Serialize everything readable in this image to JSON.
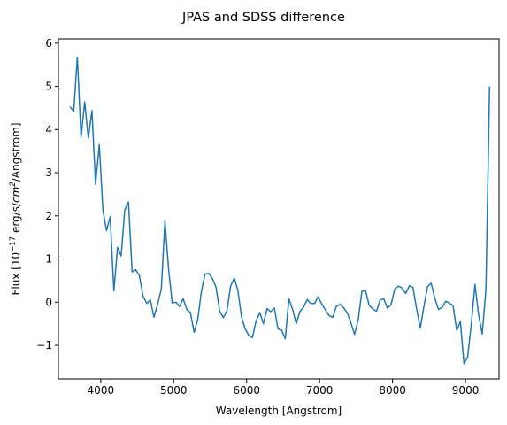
{
  "chart_data": {
    "type": "line",
    "title": "JPAS and SDSS difference",
    "xlabel": "Wavelength [Angstrom]",
    "ylabel_parts": {
      "prefix": "Flux [10",
      "exp1": "−17",
      "mid": " erg/s/",
      "cm": "cm",
      "exp2": "2",
      "suffix": "/Angstrom]"
    },
    "xlim": [
      3420,
      9460
    ],
    "ylim": [
      -1.78,
      6.1
    ],
    "xticks": [
      4000,
      5000,
      6000,
      7000,
      8000,
      9000
    ],
    "yticks": [
      -1,
      0,
      1,
      2,
      3,
      4,
      5,
      6
    ],
    "grid": false,
    "legend": "none",
    "series": [
      {
        "color": "#1f77b4",
        "x": [
          3580,
          3630,
          3680,
          3730,
          3780,
          3830,
          3880,
          3930,
          3980,
          4030,
          4080,
          4130,
          4180,
          4230,
          4280,
          4330,
          4380,
          4430,
          4480,
          4530,
          4580,
          4630,
          4680,
          4730,
          4780,
          4830,
          4880,
          4930,
          4980,
          5030,
          5080,
          5130,
          5180,
          5230,
          5280,
          5330,
          5380,
          5430,
          5480,
          5530,
          5580,
          5630,
          5680,
          5730,
          5780,
          5830,
          5880,
          5930,
          5980,
          6030,
          6080,
          6130,
          6180,
          6230,
          6280,
          6330,
          6380,
          6430,
          6480,
          6530,
          6580,
          6630,
          6680,
          6730,
          6780,
          6830,
          6880,
          6930,
          6980,
          7030,
          7080,
          7130,
          7180,
          7230,
          7280,
          7330,
          7380,
          7430,
          7480,
          7530,
          7580,
          7630,
          7680,
          7730,
          7780,
          7830,
          7880,
          7930,
          7980,
          8030,
          8080,
          8130,
          8180,
          8230,
          8280,
          8330,
          8380,
          8430,
          8480,
          8530,
          8580,
          8630,
          8680,
          8730,
          8780,
          8830,
          8880,
          8930,
          8980,
          9030,
          9080,
          9130,
          9180,
          9230,
          9280,
          9330
        ],
        "y": [
          4.53,
          4.42,
          5.68,
          3.82,
          4.64,
          3.8,
          4.44,
          2.73,
          3.65,
          2.13,
          1.66,
          1.98,
          0.26,
          1.27,
          1.07,
          2.14,
          2.32,
          0.7,
          0.75,
          0.62,
          0.14,
          -0.03,
          0.05,
          -0.35,
          -0.05,
          0.3,
          1.88,
          0.77,
          -0.02,
          0.0,
          -0.1,
          0.08,
          -0.17,
          -0.24,
          -0.7,
          -0.4,
          0.25,
          0.65,
          0.67,
          0.55,
          0.35,
          -0.2,
          -0.36,
          -0.2,
          0.37,
          0.56,
          0.28,
          -0.35,
          -0.62,
          -0.77,
          -0.82,
          -0.44,
          -0.24,
          -0.5,
          -0.15,
          -0.22,
          -0.14,
          -0.62,
          -0.65,
          -0.85,
          0.08,
          -0.17,
          -0.5,
          -0.22,
          -0.12,
          0.06,
          -0.03,
          -0.03,
          0.12,
          -0.04,
          -0.18,
          -0.31,
          -0.35,
          -0.1,
          -0.05,
          -0.13,
          -0.25,
          -0.48,
          -0.75,
          -0.4,
          0.25,
          0.27,
          -0.07,
          -0.16,
          -0.21,
          0.05,
          0.08,
          -0.14,
          -0.05,
          0.3,
          0.37,
          0.33,
          0.2,
          0.38,
          0.34,
          -0.15,
          -0.6,
          -0.1,
          0.36,
          0.44,
          0.09,
          -0.17,
          -0.12,
          0.02,
          -0.02,
          -0.09,
          -0.66,
          -0.45,
          -1.43,
          -1.27,
          -0.5,
          0.41,
          -0.29,
          -0.74,
          0.3,
          5.0
        ]
      }
    ]
  }
}
